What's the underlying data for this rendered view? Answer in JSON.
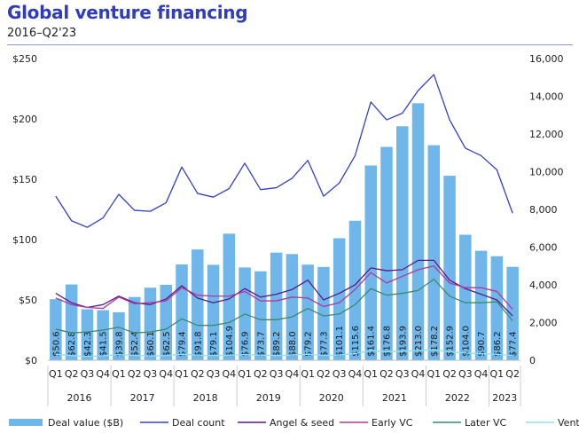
{
  "header": {
    "title": "Global venture financing",
    "subtitle": "2016–Q2'23"
  },
  "chart_data": {
    "type": "bar",
    "categories": [
      "Q1",
      "Q2",
      "Q3",
      "Q4",
      "Q1",
      "Q2",
      "Q3",
      "Q4",
      "Q1",
      "Q2",
      "Q3",
      "Q4",
      "Q1",
      "Q2",
      "Q3",
      "Q4",
      "Q1",
      "Q2",
      "Q3",
      "Q4",
      "Q1",
      "Q2",
      "Q3",
      "Q4",
      "Q1",
      "Q2",
      "Q3",
      "Q4",
      "Q1",
      "Q2"
    ],
    "years": [
      {
        "label": "2016",
        "start": 0,
        "count": 4
      },
      {
        "label": "2017",
        "start": 4,
        "count": 4
      },
      {
        "label": "2018",
        "start": 8,
        "count": 4
      },
      {
        "label": "2019",
        "start": 12,
        "count": 4
      },
      {
        "label": "2020",
        "start": 16,
        "count": 4
      },
      {
        "label": "2021",
        "start": 20,
        "count": 4
      },
      {
        "label": "2022",
        "start": 24,
        "count": 4
      },
      {
        "label": "2023",
        "start": 28,
        "count": 2
      }
    ],
    "bar_series": {
      "name": "Deal value ($B)",
      "values": [
        50.6,
        62.8,
        42.3,
        41.5,
        39.8,
        52.4,
        60.1,
        62.5,
        79.4,
        91.8,
        79.1,
        104.9,
        76.9,
        73.7,
        89.2,
        88.0,
        79.2,
        77.3,
        101.1,
        115.6,
        161.4,
        176.8,
        193.9,
        213.0,
        178.2,
        152.9,
        104.0,
        90.7,
        86.2,
        77.4
      ],
      "labels": [
        "$50.6",
        "$62.8",
        "$42.3",
        "$41.5",
        "$39.8",
        "$52.4",
        "$60.1",
        "$62.5",
        "$79.4",
        "$91.8",
        "$79.1",
        "$104.9",
        "$76.9",
        "$73.7",
        "$89.2",
        "$88.0",
        "$79.2",
        "$77.3",
        "$101.1",
        "$115.6",
        "$161.4",
        "$176.8",
        "$193.9",
        "$213.0",
        "$178.2",
        "$152.9",
        "$104.0",
        "$90.7",
        "$86.2",
        "$77.4"
      ],
      "color": "#6fb6ea"
    },
    "line_series": [
      {
        "name": "Deal count",
        "color": "#3342c4",
        "values": [
          8700,
          7400,
          7050,
          7550,
          8800,
          7950,
          7900,
          8350,
          10250,
          8850,
          8650,
          9100,
          10450,
          9050,
          9150,
          9650,
          10600,
          8700,
          9400,
          10850,
          13700,
          12750,
          13100,
          14300,
          15150,
          12750,
          11250,
          10850,
          10100,
          7800
        ]
      },
      {
        "name": "Angel & seed",
        "color": "#5b1a8c",
        "values": [
          3550,
          3050,
          2800,
          2950,
          3400,
          3050,
          2950,
          3250,
          3950,
          3300,
          3050,
          3250,
          3800,
          3350,
          3500,
          3750,
          4250,
          3200,
          3550,
          4000,
          4900,
          4750,
          4800,
          5300,
          5300,
          4250,
          3800,
          3500,
          3200,
          2350
        ]
      },
      {
        "name": "Early VC",
        "color": "#b03a9a",
        "values": [
          3300,
          2950,
          2800,
          2750,
          3350,
          3000,
          3050,
          3150,
          3850,
          3450,
          3400,
          3400,
          3650,
          3150,
          3150,
          3350,
          3300,
          2850,
          3050,
          3750,
          4650,
          4100,
          4450,
          4800,
          5000,
          4100,
          3850,
          3850,
          3650,
          2700
        ]
      },
      {
        "name": "Later VC",
        "color": "#3d8a6a",
        "values": [
          1650,
          1450,
          1500,
          1600,
          1750,
          1450,
          1500,
          1650,
          2200,
          1850,
          1850,
          2000,
          2450,
          2150,
          2150,
          2300,
          2750,
          2350,
          2450,
          2950,
          3800,
          3450,
          3550,
          3700,
          4300,
          3400,
          3050,
          3050,
          3100,
          2100
        ]
      },
      {
        "name": "Venture growth",
        "color": "#8fe0f0",
        "values": [
          320,
          250,
          200,
          240,
          300,
          260,
          230,
          250,
          320,
          270,
          250,
          270,
          300,
          270,
          250,
          280,
          320,
          260,
          280,
          350,
          520,
          450,
          480,
          520,
          560,
          450,
          380,
          350,
          310,
          260
        ]
      }
    ],
    "left_axis": {
      "ticks": [
        "$0",
        "$50",
        "$100",
        "$150",
        "$200",
        "$250"
      ],
      "min": 0,
      "max": 250
    },
    "right_axis": {
      "ticks": [
        "0",
        "2,000",
        "4,000",
        "6,000",
        "8,000",
        "10,000",
        "12,000",
        "14,000",
        "16,000"
      ],
      "min": 0,
      "max": 16000
    },
    "legend": [
      "Deal value ($B)",
      "Deal count",
      "Angel & seed",
      "Early VC",
      "Later VC",
      "Venture growth"
    ],
    "legend_placement": "bottom",
    "grid": false
  }
}
